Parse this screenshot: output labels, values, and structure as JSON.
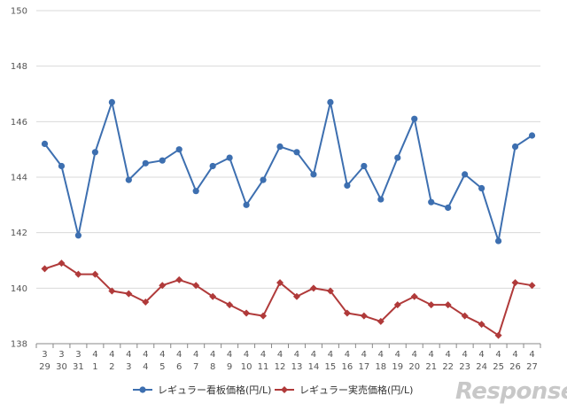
{
  "chart_data": {
    "type": "line",
    "title": "",
    "xlabel": "",
    "ylabel": "",
    "ylim": [
      138,
      150
    ],
    "yticks": [
      138,
      140,
      142,
      144,
      146,
      148,
      150
    ],
    "grid": "horizontal",
    "legend_placement": "bottom",
    "categories": [
      {
        "month": "3",
        "day": "29"
      },
      {
        "month": "3",
        "day": "30"
      },
      {
        "month": "3",
        "day": "31"
      },
      {
        "month": "4",
        "day": "1"
      },
      {
        "month": "4",
        "day": "2"
      },
      {
        "month": "4",
        "day": "3"
      },
      {
        "month": "4",
        "day": "4"
      },
      {
        "month": "4",
        "day": "5"
      },
      {
        "month": "4",
        "day": "6"
      },
      {
        "month": "4",
        "day": "7"
      },
      {
        "month": "4",
        "day": "8"
      },
      {
        "month": "4",
        "day": "9"
      },
      {
        "month": "4",
        "day": "10"
      },
      {
        "month": "4",
        "day": "11"
      },
      {
        "month": "4",
        "day": "12"
      },
      {
        "month": "4",
        "day": "13"
      },
      {
        "month": "4",
        "day": "14"
      },
      {
        "month": "4",
        "day": "15"
      },
      {
        "month": "4",
        "day": "16"
      },
      {
        "month": "4",
        "day": "17"
      },
      {
        "month": "4",
        "day": "18"
      },
      {
        "month": "4",
        "day": "19"
      },
      {
        "month": "4",
        "day": "20"
      },
      {
        "month": "4",
        "day": "21"
      },
      {
        "month": "4",
        "day": "22"
      },
      {
        "month": "4",
        "day": "23"
      },
      {
        "month": "4",
        "day": "24"
      },
      {
        "month": "4",
        "day": "25"
      },
      {
        "month": "4",
        "day": "26"
      },
      {
        "month": "4",
        "day": "27"
      }
    ],
    "series": [
      {
        "name": "レギュラー看板価格(円/L)",
        "color": "#3d6fb0",
        "marker": "circle",
        "values": [
          145.2,
          144.4,
          141.9,
          144.9,
          146.7,
          143.9,
          144.5,
          144.6,
          145.0,
          143.5,
          144.4,
          144.7,
          143.0,
          143.9,
          145.1,
          144.9,
          144.1,
          146.7,
          143.7,
          144.4,
          143.2,
          144.7,
          146.1,
          143.1,
          142.9,
          144.1,
          143.6,
          141.7,
          145.1,
          145.5
        ]
      },
      {
        "name": "レギュラー実売価格(円/L)",
        "color": "#b03a3a",
        "marker": "diamond",
        "values": [
          140.7,
          140.9,
          140.5,
          140.5,
          139.9,
          139.8,
          139.5,
          140.1,
          140.3,
          140.1,
          139.7,
          139.4,
          139.1,
          139.0,
          140.2,
          139.7,
          140.0,
          139.9,
          139.1,
          139.0,
          138.8,
          139.4,
          139.7,
          139.4,
          139.4,
          139.0,
          138.7,
          138.3,
          140.2,
          140.1
        ]
      }
    ]
  },
  "watermark": {
    "text": "Response."
  }
}
